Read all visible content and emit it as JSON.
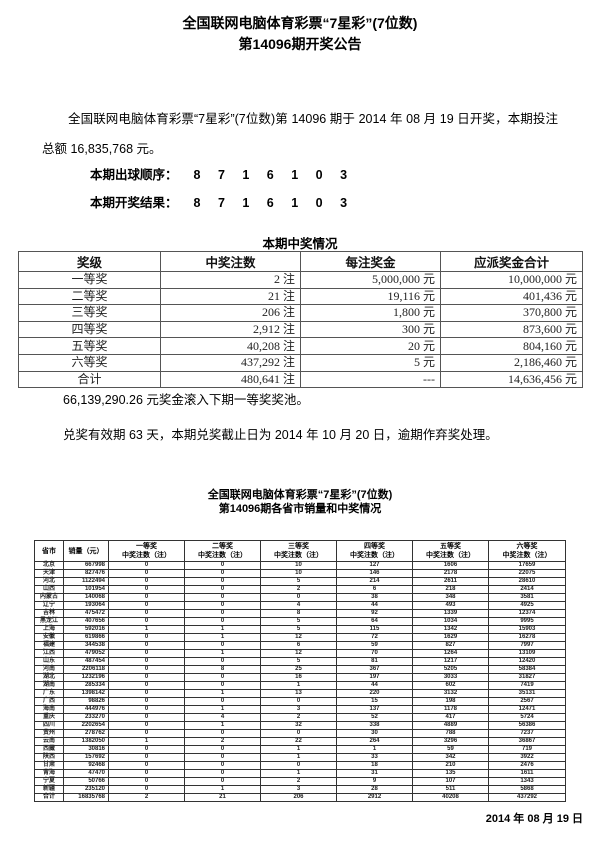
{
  "announcement": {
    "title_line1": "全国联网电脑体育彩票“7星彩”(7位数)",
    "title_line2": "第14096期开奖公告",
    "intro_paragraph": "全国联网电脑体育彩票“7星彩”(7位数)第 14096 期于 2014 年 08 月 19 日开奖，本期投注总额 16,835,768 元。",
    "ball_order_label": "本期出球顺序：",
    "ball_order_value": "8 7 1 6 1 0 3",
    "draw_result_label": "本期开奖结果：",
    "draw_result_value": "8 7 1 6 1 0 3",
    "rollover_text": "66,139,290.26 元奖金滚入下期一等奖奖池。",
    "redemption_text": "兑奖有效期 63 天，本期兑奖截止日为 2014 年 10 月 20 日，逾期作弃奖处理。",
    "date": "2014 年 08 月 19 日"
  },
  "prize_table": {
    "title": "本期中奖情况",
    "headers": [
      "奖级",
      "中奖注数",
      "每注奖金",
      "应派奖金合计"
    ],
    "rows": [
      [
        "一等奖",
        "2 注",
        "5,000,000 元",
        "10,000,000 元"
      ],
      [
        "二等奖",
        "21 注",
        "19,116 元",
        "401,436 元"
      ],
      [
        "三等奖",
        "206 注",
        "1,800 元",
        "370,800 元"
      ],
      [
        "四等奖",
        "2,912 注",
        "300 元",
        "873,600 元"
      ],
      [
        "五等奖",
        "40,208 注",
        "20 元",
        "804,160 元"
      ],
      [
        "六等奖",
        "437,292 注",
        "5 元",
        "2,186,460 元"
      ],
      [
        "合计",
        "480,641 注",
        "---",
        "14,636,456 元"
      ]
    ]
  },
  "province_section": {
    "title_line1": "全国联网电脑体育彩票“7星彩”(7位数)",
    "title_line2": "第14096期各省市销量和中奖情况",
    "col_header_province": "省市",
    "col_header_sales": "销量（元）",
    "prize_headers": [
      {
        "line1": "一等奖",
        "line2": "中奖注数（注）"
      },
      {
        "line1": "二等奖",
        "line2": "中奖注数（注）"
      },
      {
        "line1": "三等奖",
        "line2": "中奖注数（注）"
      },
      {
        "line1": "四等奖",
        "line2": "中奖注数（注）"
      },
      {
        "line1": "五等奖",
        "line2": "中奖注数（注）"
      },
      {
        "line1": "六等奖",
        "line2": "中奖注数（注）"
      }
    ],
    "rows": [
      [
        "北京",
        "667998",
        "0",
        "0",
        "10",
        "127",
        "1606",
        "17659"
      ],
      [
        "天津",
        "827476",
        "0",
        "0",
        "10",
        "146",
        "2178",
        "22075"
      ],
      [
        "河北",
        "1122494",
        "0",
        "0",
        "5",
        "214",
        "2611",
        "28610"
      ],
      [
        "山西",
        "101954",
        "0",
        "0",
        "2",
        "6",
        "218",
        "2414"
      ],
      [
        "内蒙古",
        "140068",
        "0",
        "0",
        "0",
        "38",
        "348",
        "3581"
      ],
      [
        "辽宁",
        "193064",
        "0",
        "0",
        "4",
        "44",
        "493",
        "4925"
      ],
      [
        "吉林",
        "475472",
        "0",
        "0",
        "8",
        "92",
        "1339",
        "12374"
      ],
      [
        "黑龙江",
        "407656",
        "0",
        "0",
        "5",
        "64",
        "1034",
        "9995"
      ],
      [
        "上海",
        "592016",
        "1",
        "1",
        "5",
        "115",
        "1342",
        "15903"
      ],
      [
        "安徽",
        "619866",
        "0",
        "1",
        "12",
        "72",
        "1629",
        "16278"
      ],
      [
        "福建",
        "344538",
        "0",
        "0",
        "6",
        "59",
        "827",
        "7997"
      ],
      [
        "江西",
        "479052",
        "0",
        "1",
        "12",
        "70",
        "1264",
        "13109"
      ],
      [
        "山东",
        "487454",
        "0",
        "0",
        "5",
        "81",
        "1217",
        "12420"
      ],
      [
        "河南",
        "2206118",
        "0",
        "8",
        "25",
        "367",
        "5205",
        "58384"
      ],
      [
        "湖北",
        "1232196",
        "0",
        "0",
        "16",
        "197",
        "3033",
        "31827"
      ],
      [
        "湖南",
        "285334",
        "0",
        "0",
        "1",
        "44",
        "602",
        "7419"
      ],
      [
        "广东",
        "1398142",
        "0",
        "1",
        "13",
        "220",
        "3132",
        "35131"
      ],
      [
        "广西",
        "98826",
        "0",
        "0",
        "0",
        "15",
        "198",
        "2567"
      ],
      [
        "海南",
        "444976",
        "0",
        "1",
        "3",
        "137",
        "1178",
        "12471"
      ],
      [
        "重庆",
        "233270",
        "0",
        "4",
        "2",
        "52",
        "417",
        "5724"
      ],
      [
        "四川",
        "2202654",
        "0",
        "1",
        "32",
        "338",
        "4889",
        "56386"
      ],
      [
        "贵州",
        "278762",
        "0",
        "0",
        "0",
        "30",
        "788",
        "7237"
      ],
      [
        "云南",
        "1382050",
        "1",
        "2",
        "22",
        "264",
        "3296",
        "36867"
      ],
      [
        "西藏",
        "30816",
        "0",
        "0",
        "1",
        "1",
        "59",
        "719"
      ],
      [
        "陕西",
        "157692",
        "0",
        "0",
        "1",
        "33",
        "342",
        "3922"
      ],
      [
        "甘肃",
        "92468",
        "0",
        "0",
        "0",
        "18",
        "210",
        "2476"
      ],
      [
        "青海",
        "47470",
        "0",
        "0",
        "1",
        "31",
        "135",
        "1611"
      ],
      [
        "宁夏",
        "50766",
        "0",
        "0",
        "2",
        "9",
        "107",
        "1343"
      ],
      [
        "新疆",
        "235120",
        "0",
        "1",
        "3",
        "28",
        "511",
        "5868"
      ],
      [
        "合计",
        "16835768",
        "2",
        "21",
        "206",
        "2912",
        "40208",
        "437292"
      ]
    ]
  }
}
